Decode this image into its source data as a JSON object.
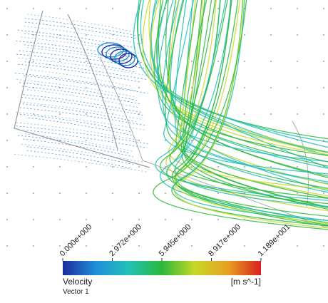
{
  "chart_data": {
    "type": "colorbar",
    "title": "Velocity",
    "subtitle": "Vector 1",
    "unit_label": "[m s^-1]",
    "xlim": [
      0,
      11.89
    ],
    "xticks": [
      {
        "value": 0,
        "label": "0.000e+000"
      },
      {
        "value": 2.972,
        "label": "2.972e+000"
      },
      {
        "value": 5.945,
        "label": "5.945e+000"
      },
      {
        "value": 8.917,
        "label": "8.917e+000"
      },
      {
        "value": 11.89,
        "label": "1.189e+001"
      }
    ],
    "colormap": [
      "#1c2c9c",
      "#1f8fd8",
      "#22c0b8",
      "#2ab83a",
      "#c8d828",
      "#e8a020",
      "#d82020"
    ]
  }
}
